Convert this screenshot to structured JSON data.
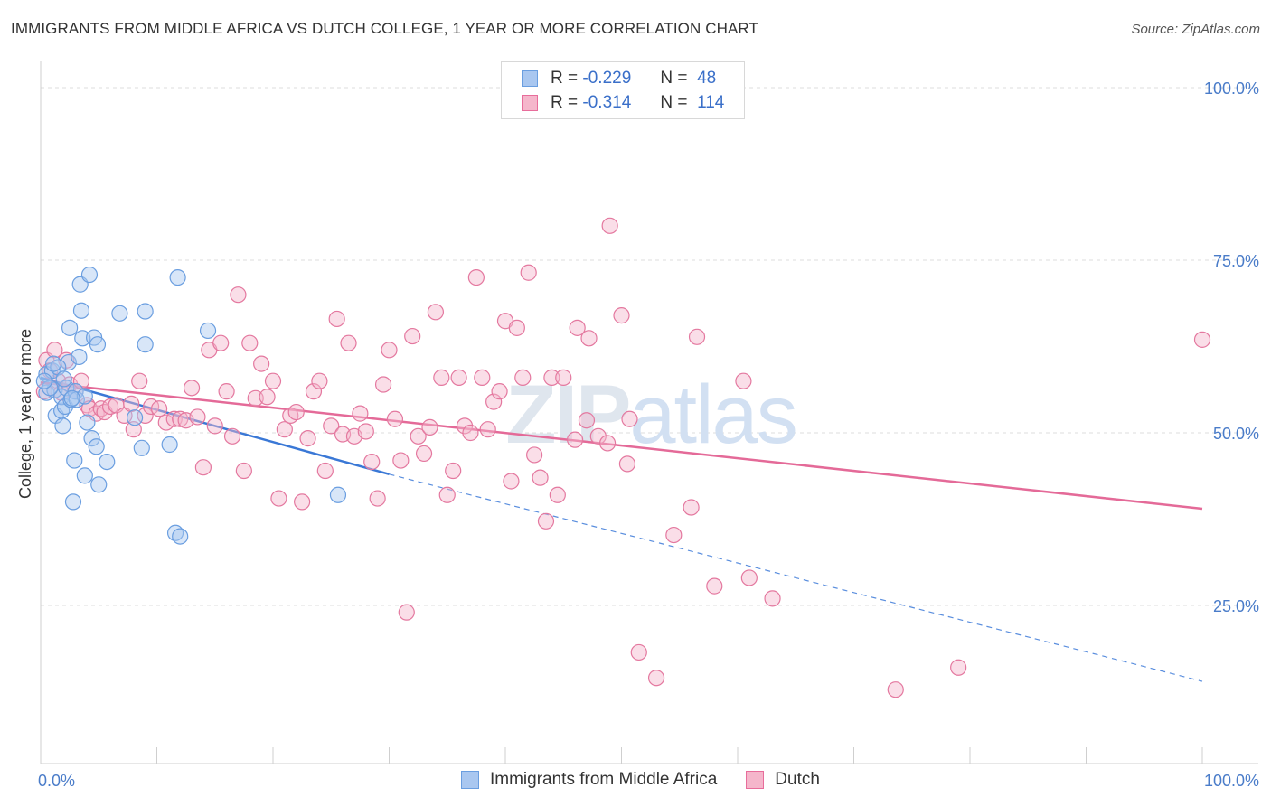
{
  "title": "IMMIGRANTS FROM MIDDLE AFRICA VS DUTCH COLLEGE, 1 YEAR OR MORE CORRELATION CHART",
  "source": "Source: ZipAtlas.com",
  "watermark": "ZIPatlas",
  "colors": {
    "blue": "#6a9ee0",
    "blue_fill": "#a9c7f0",
    "pink": "#e86d9b",
    "pink_fill": "#f5b6cb",
    "tick_blue": "#4a7cc9"
  },
  "legend": {
    "rows": [
      {
        "r_label": "R =",
        "r_value": "-0.229",
        "n_label": "N =",
        "n_value": "48"
      },
      {
        "r_label": "R =",
        "r_value": "-0.314",
        "n_label": "N =",
        "n_value": "114"
      }
    ]
  },
  "bottom_legend": [
    "Immigrants from Middle Africa",
    "Dutch"
  ],
  "chart_data": {
    "type": "scatter",
    "title": "IMMIGRANTS FROM MIDDLE AFRICA VS DUTCH COLLEGE, 1 YEAR OR MORE CORRELATION CHART",
    "xlabel": "",
    "ylabel": "College, 1 year or more",
    "xlim": [
      0,
      100
    ],
    "ylim": [
      0,
      105
    ],
    "x_tick_labels": [
      "0.0%",
      "100.0%"
    ],
    "y_ticks": [
      25,
      50,
      75,
      100
    ],
    "y_tick_labels": [
      "25.0%",
      "50.0%",
      "75.0%",
      "100.0%"
    ],
    "series": [
      {
        "name": "Immigrants from Middle Africa",
        "color": "#6a9ee0",
        "trend": {
          "x0": 0,
          "y0": 58.0,
          "x1": 30,
          "y1": 44.0,
          "dashed_to_x": 100,
          "dashed_to_y": 14.0
        },
        "points": [
          [
            0.5,
            58.5
          ],
          [
            0.5,
            55.8
          ],
          [
            1.0,
            59.0
          ],
          [
            1.2,
            56.2
          ],
          [
            1.3,
            52.5
          ],
          [
            1.8,
            53.2
          ],
          [
            1.8,
            55.2
          ],
          [
            1.9,
            51.0
          ],
          [
            2.1,
            53.8
          ],
          [
            2.2,
            56.5
          ],
          [
            2.4,
            60.2
          ],
          [
            2.5,
            65.2
          ],
          [
            2.6,
            54.8
          ],
          [
            2.8,
            40.0
          ],
          [
            2.9,
            46.0
          ],
          [
            3.0,
            56.0
          ],
          [
            3.1,
            54.8
          ],
          [
            3.3,
            61.0
          ],
          [
            3.4,
            71.5
          ],
          [
            3.5,
            67.7
          ],
          [
            3.6,
            63.7
          ],
          [
            3.8,
            55.3
          ],
          [
            3.8,
            43.8
          ],
          [
            4.0,
            51.5
          ],
          [
            4.2,
            72.9
          ],
          [
            4.4,
            49.2
          ],
          [
            4.6,
            63.8
          ],
          [
            4.8,
            48.0
          ],
          [
            4.9,
            62.8
          ],
          [
            5.0,
            42.5
          ],
          [
            5.7,
            45.8
          ],
          [
            6.8,
            67.3
          ],
          [
            8.1,
            52.2
          ],
          [
            8.7,
            47.8
          ],
          [
            9.0,
            62.8
          ],
          [
            9.0,
            67.6
          ],
          [
            11.1,
            48.3
          ],
          [
            11.6,
            35.5
          ],
          [
            11.8,
            72.5
          ],
          [
            12.0,
            35.0
          ],
          [
            14.4,
            64.8
          ],
          [
            25.6,
            41.0
          ],
          [
            0.8,
            56.5
          ],
          [
            1.5,
            59.5
          ],
          [
            2.0,
            57.8
          ],
          [
            0.3,
            57.5
          ],
          [
            1.1,
            60.0
          ],
          [
            2.7,
            55.0
          ]
        ]
      },
      {
        "name": "Dutch",
        "color": "#e86d9b",
        "trend": {
          "x0": 0,
          "y0": 57.3,
          "x1": 100,
          "y1": 39.0
        },
        "points": [
          [
            0.3,
            56.0
          ],
          [
            0.5,
            60.5
          ],
          [
            0.8,
            59.0
          ],
          [
            1.2,
            62.0
          ],
          [
            1.5,
            57.5
          ],
          [
            1.8,
            55.8
          ],
          [
            2.2,
            60.5
          ],
          [
            2.5,
            57.0
          ],
          [
            3.0,
            56.0
          ],
          [
            3.5,
            57.5
          ],
          [
            4.0,
            54.0
          ],
          [
            4.2,
            53.5
          ],
          [
            4.8,
            52.8
          ],
          [
            5.2,
            53.5
          ],
          [
            5.5,
            53.0
          ],
          [
            6.0,
            53.8
          ],
          [
            6.5,
            54.0
          ],
          [
            7.2,
            52.5
          ],
          [
            7.8,
            54.2
          ],
          [
            8.0,
            50.5
          ],
          [
            8.5,
            57.5
          ],
          [
            9.0,
            52.5
          ],
          [
            9.5,
            53.8
          ],
          [
            10.2,
            53.5
          ],
          [
            10.8,
            51.5
          ],
          [
            11.5,
            52.0
          ],
          [
            12.0,
            52.0
          ],
          [
            12.5,
            51.8
          ],
          [
            13.0,
            56.5
          ],
          [
            13.5,
            52.3
          ],
          [
            14.0,
            45.0
          ],
          [
            14.5,
            62.0
          ],
          [
            15.0,
            51.0
          ],
          [
            15.5,
            63.0
          ],
          [
            16.0,
            56.0
          ],
          [
            16.5,
            49.5
          ],
          [
            17.0,
            70.0
          ],
          [
            17.5,
            44.5
          ],
          [
            18.0,
            63.0
          ],
          [
            18.5,
            55.0
          ],
          [
            19.0,
            60.0
          ],
          [
            19.5,
            55.2
          ],
          [
            20.0,
            57.5
          ],
          [
            20.5,
            40.5
          ],
          [
            21.0,
            50.5
          ],
          [
            21.5,
            52.5
          ],
          [
            22.0,
            53.0
          ],
          [
            22.5,
            40.0
          ],
          [
            23.0,
            49.2
          ],
          [
            23.5,
            56.0
          ],
          [
            24.0,
            57.5
          ],
          [
            24.5,
            44.5
          ],
          [
            25.0,
            51.0
          ],
          [
            25.5,
            66.5
          ],
          [
            26.0,
            49.8
          ],
          [
            26.5,
            63.0
          ],
          [
            27.0,
            49.5
          ],
          [
            27.5,
            52.8
          ],
          [
            28.0,
            50.2
          ],
          [
            28.5,
            45.8
          ],
          [
            29.0,
            40.5
          ],
          [
            29.5,
            57.0
          ],
          [
            30.0,
            62.0
          ],
          [
            30.5,
            52.0
          ],
          [
            31.0,
            46.0
          ],
          [
            31.5,
            24.0
          ],
          [
            32.0,
            64.0
          ],
          [
            32.5,
            49.5
          ],
          [
            33.0,
            47.0
          ],
          [
            33.5,
            50.8
          ],
          [
            34.0,
            67.5
          ],
          [
            34.5,
            58.0
          ],
          [
            35.0,
            41.0
          ],
          [
            35.5,
            44.5
          ],
          [
            36.0,
            58.0
          ],
          [
            36.5,
            51.0
          ],
          [
            37.0,
            50.0
          ],
          [
            37.5,
            72.5
          ],
          [
            38.0,
            58.0
          ],
          [
            38.5,
            50.5
          ],
          [
            39.0,
            54.5
          ],
          [
            39.5,
            56.0
          ],
          [
            40.0,
            66.2
          ],
          [
            40.5,
            43.0
          ],
          [
            41.0,
            65.2
          ],
          [
            41.5,
            58.0
          ],
          [
            42.0,
            73.2
          ],
          [
            42.5,
            46.8
          ],
          [
            43.0,
            43.5
          ],
          [
            43.5,
            37.2
          ],
          [
            44.0,
            58.0
          ],
          [
            44.5,
            41.0
          ],
          [
            45.0,
            58.0
          ],
          [
            46.0,
            49.0
          ],
          [
            46.2,
            65.2
          ],
          [
            47.0,
            51.8
          ],
          [
            47.2,
            63.7
          ],
          [
            48.0,
            49.5
          ],
          [
            48.8,
            48.5
          ],
          [
            49.0,
            80.0
          ],
          [
            50.0,
            67.0
          ],
          [
            50.5,
            45.5
          ],
          [
            50.7,
            52.0
          ],
          [
            51.5,
            18.2
          ],
          [
            53.0,
            14.5
          ],
          [
            54.5,
            35.2
          ],
          [
            56.0,
            39.2
          ],
          [
            56.5,
            63.9
          ],
          [
            58.0,
            27.8
          ],
          [
            60.5,
            57.5
          ],
          [
            61.0,
            29.0
          ],
          [
            63.0,
            26.0
          ],
          [
            73.6,
            12.8
          ],
          [
            79.0,
            16.0
          ],
          [
            100.0,
            63.5
          ]
        ]
      }
    ]
  }
}
